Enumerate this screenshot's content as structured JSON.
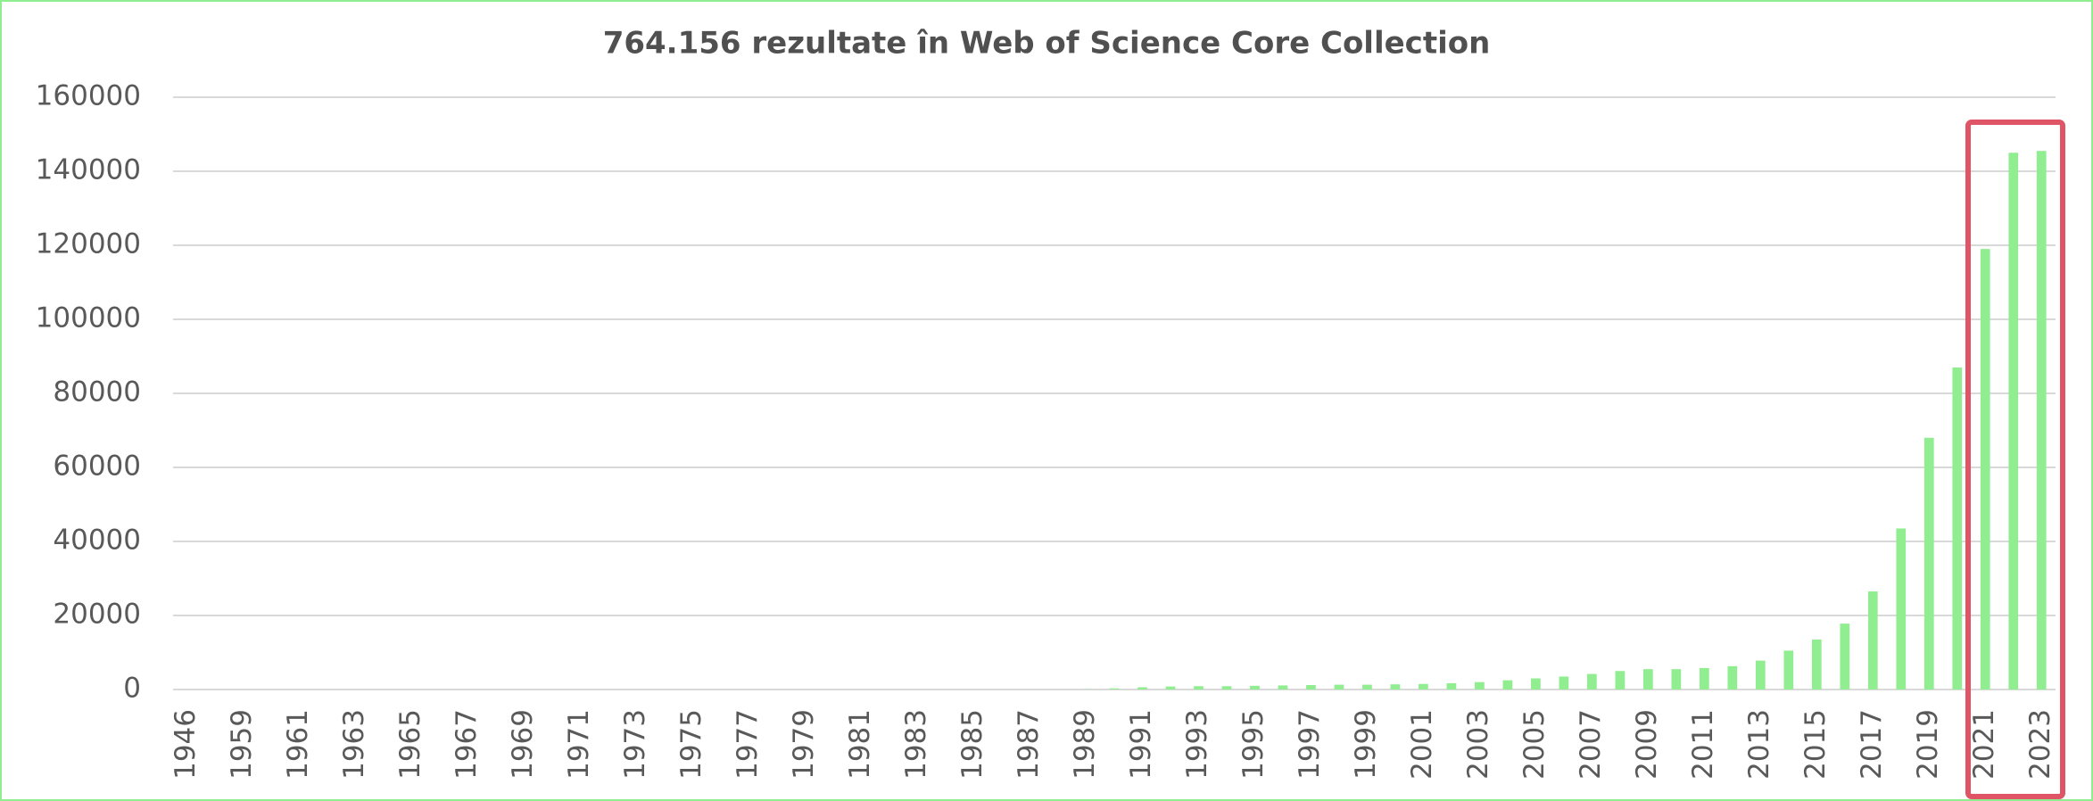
{
  "chart_data": {
    "type": "bar",
    "title": "764.156 rezultate în Web of Science Core Collection",
    "categories": [
      "1946",
      null,
      "1959",
      null,
      "1961",
      null,
      "1963",
      null,
      "1965",
      null,
      "1967",
      null,
      "1969",
      null,
      "1971",
      null,
      "1973",
      null,
      "1975",
      null,
      "1977",
      null,
      "1979",
      null,
      "1981",
      null,
      "1983",
      null,
      "1985",
      null,
      "1987",
      null,
      "1989",
      null,
      "1991",
      null,
      "1993",
      null,
      "1995",
      null,
      "1997",
      null,
      "1999",
      null,
      "2001",
      null,
      "2003",
      null,
      "2005",
      null,
      "2007",
      null,
      "2009",
      null,
      "2011",
      null,
      "2013",
      null,
      "2015",
      null,
      "2017",
      null,
      "2019",
      null,
      "2021",
      null,
      "2023"
    ],
    "values": [
      0,
      0,
      0,
      0,
      0,
      0,
      0,
      0,
      0,
      0,
      0,
      0,
      0,
      0,
      0,
      0,
      0,
      0,
      0,
      0,
      0,
      0,
      0,
      0,
      0,
      0,
      0,
      0,
      0,
      0,
      0,
      0,
      50,
      300,
      600,
      800,
      900,
      900,
      1000,
      1100,
      1200,
      1300,
      1300,
      1400,
      1500,
      1700,
      2000,
      2500,
      3000,
      3500,
      4200,
      5000,
      5500,
      5500,
      5800,
      6300,
      7800,
      10500,
      13500,
      17800,
      26500,
      43500,
      68000,
      87000,
      119000,
      145000,
      145500
    ],
    "color": "#90ee90",
    "ylim": [
      0,
      160000
    ],
    "yticks": [
      0,
      20000,
      40000,
      60000,
      80000,
      100000,
      120000,
      140000,
      160000
    ],
    "grid": true
  }
}
